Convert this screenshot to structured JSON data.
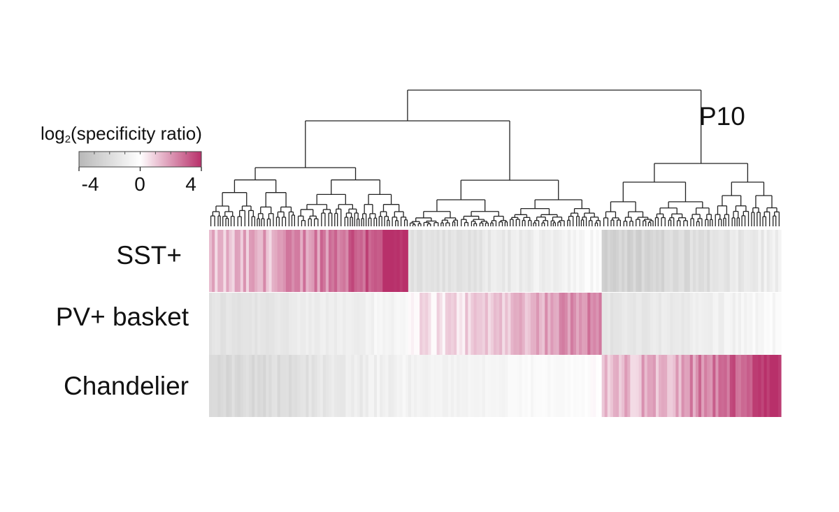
{
  "chart_data": {
    "type": "heatmap",
    "panel_label": "P10",
    "rows": [
      "SST+",
      "PV+ basket",
      "Chandelier"
    ],
    "columns": "genes, hierarchically clustered into three groups (dendrogram above heatmap)",
    "colorbar": {
      "title_main": "log",
      "title_sub": "2",
      "title_rest": "(specificity ratio)",
      "range": [
        -4,
        4
      ],
      "ticks": [
        -4,
        0,
        4
      ],
      "ticks_labels": [
        "-4",
        "0",
        "4"
      ],
      "colors": {
        "low": "#b8b8b8",
        "mid": "#ffffff",
        "high": "#b8306a"
      }
    },
    "clusters": [
      {
        "size": 70,
        "rows": {
          "SST+": [
            1.0,
            4.2
          ],
          "PV+ basket": [
            -1.6,
            -0.4
          ],
          "Chandelier": [
            -2.2,
            -0.6
          ]
        }
      },
      {
        "size": 68,
        "rows": {
          "SST+": [
            -1.8,
            -0.3
          ],
          "PV+ basket": [
            0.4,
            2.6
          ],
          "Chandelier": [
            -0.8,
            0.0
          ]
        }
      },
      {
        "size": 63,
        "rows": {
          "SST+": [
            -2.6,
            -0.8
          ],
          "PV+ basket": [
            -1.5,
            -0.3
          ],
          "Chandelier": [
            1.0,
            4.0
          ]
        }
      }
    ],
    "dendrogram": {
      "top_split": "root splits into (cluster 1 + cluster 2) and cluster 3"
    }
  }
}
